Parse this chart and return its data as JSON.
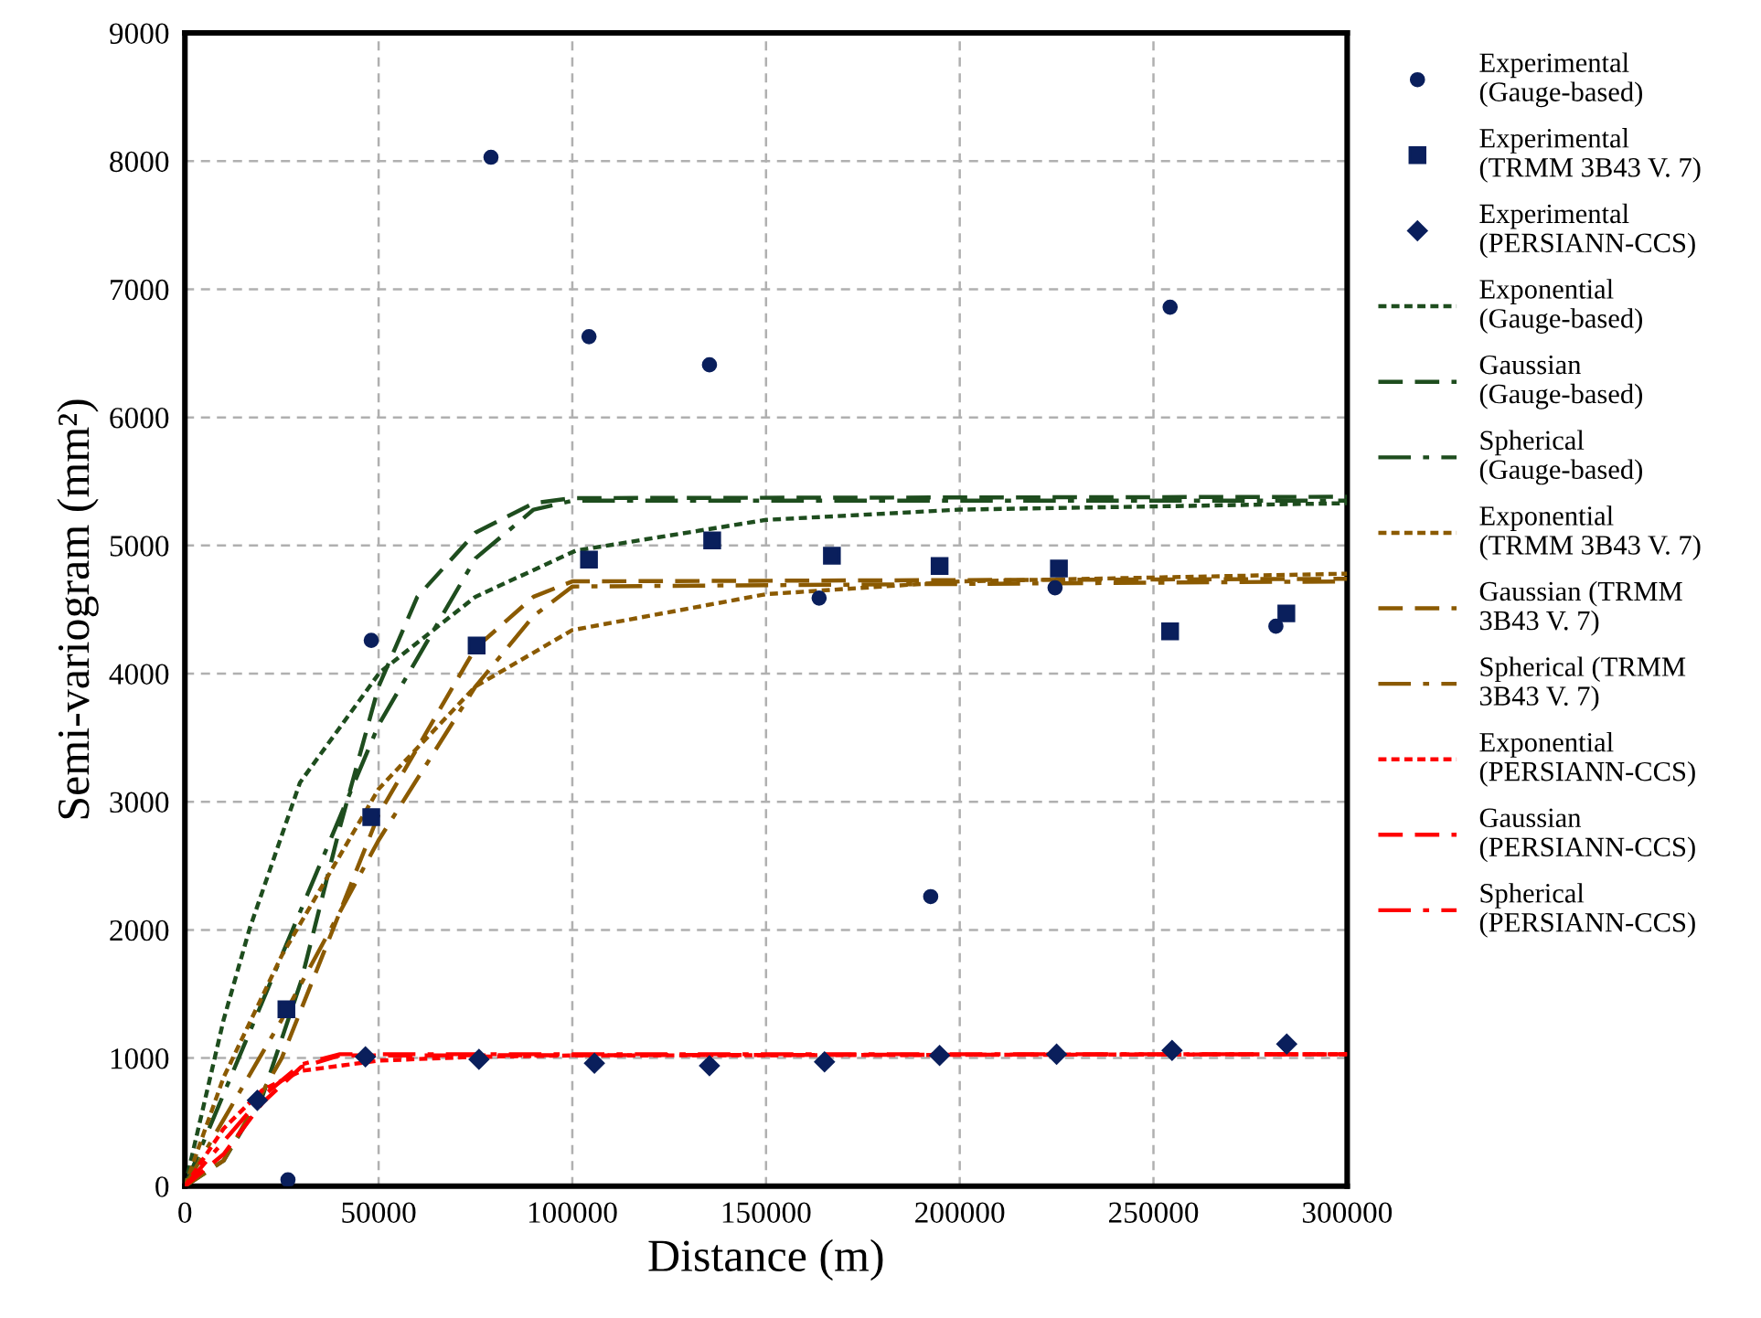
{
  "chart_data": {
    "type": "scatter",
    "xlabel": "Distance (m)",
    "ylabel": "Semi-variogram (mm²)",
    "xlim": [
      0,
      300000
    ],
    "ylim": [
      0,
      9000
    ],
    "xticks": [
      0,
      50000,
      100000,
      150000,
      200000,
      250000,
      300000
    ],
    "yticks": [
      0,
      1000,
      2000,
      3000,
      4000,
      5000,
      6000,
      7000,
      8000,
      9000
    ],
    "grid": true,
    "legend": "right",
    "series": [
      {
        "name": "Experimental (Gauge-based)",
        "marker": "circle",
        "color": "#0a1f5c",
        "x": [
          26600,
          48100,
          79000,
          104300,
          135400,
          163700,
          192500,
          224600,
          254300,
          281600
        ],
        "values": [
          50,
          4260,
          8030,
          6630,
          6410,
          4590,
          2260,
          4670,
          6860,
          4370
        ]
      },
      {
        "name": "Experimental (TRMM 3B43 V. 7)",
        "marker": "square",
        "color": "#0a1f5c",
        "x": [
          26200,
          48100,
          75300,
          104300,
          136100,
          167000,
          194800,
          225600,
          254300,
          284300
        ],
        "values": [
          1380,
          2880,
          4220,
          4890,
          5040,
          4920,
          4840,
          4820,
          4330,
          4470
        ]
      },
      {
        "name": "Experimental (PERSIANN-CCS)",
        "marker": "diamond",
        "color": "#0a1f5c",
        "x": [
          18700,
          46600,
          75900,
          105700,
          135400,
          165100,
          194800,
          225000,
          254800,
          284400
        ],
        "values": [
          670,
          1010,
          990,
          960,
          940,
          970,
          1020,
          1030,
          1060,
          1110
        ]
      },
      {
        "name": "Exponential (Gauge-based)",
        "type": "line",
        "line_style": "dotted",
        "color": "#1e4d1e",
        "x": [
          0,
          10000,
          16700,
          29700,
          50300,
          75000,
          100900,
          150000,
          200000,
          300000
        ],
        "values": [
          0,
          1300,
          2010,
          3150,
          4010,
          4600,
          4960,
          5200,
          5280,
          5330
        ]
      },
      {
        "name": "Gaussian (Gauge-based)",
        "type": "line",
        "line_style": "dashed",
        "color": "#1e4d1e",
        "x": [
          0,
          10000,
          20000,
          30000,
          40000,
          50000,
          60000,
          75000,
          90000,
          100000,
          300000
        ],
        "values": [
          0,
          200,
          700,
          1600,
          2800,
          3900,
          4600,
          5100,
          5330,
          5370,
          5380
        ]
      },
      {
        "name": "Spherical (Gauge-based)",
        "type": "line",
        "line_style": "dashdot",
        "color": "#1e4d1e",
        "x": [
          0,
          25000,
          50000,
          75000,
          90000,
          100000,
          300000
        ],
        "values": [
          0,
          1800,
          3600,
          4900,
          5280,
          5350,
          5350
        ]
      },
      {
        "name": "Exponential (TRMM 3B43 V. 7)",
        "type": "line",
        "line_style": "dotted",
        "color": "#8b5a00",
        "x": [
          0,
          10000,
          25000,
          50000,
          75000,
          100000,
          150000,
          200000,
          300000
        ],
        "values": [
          0,
          850,
          1800,
          3100,
          3900,
          4340,
          4620,
          4720,
          4780
        ]
      },
      {
        "name": "Gaussian (TRMM 3B43 V. 7)",
        "type": "line",
        "line_style": "dashed",
        "color": "#8b5a00",
        "x": [
          0,
          10000,
          25000,
          50000,
          75000,
          90000,
          100000,
          300000
        ],
        "values": [
          0,
          200,
          1000,
          2900,
          4200,
          4600,
          4720,
          4740
        ]
      },
      {
        "name": "Spherical (TRMM 3B43 V. 7)",
        "type": "line",
        "line_style": "dashdot",
        "color": "#8b5a00",
        "x": [
          0,
          25000,
          50000,
          75000,
          90000,
          100000,
          300000
        ],
        "values": [
          0,
          1300,
          2700,
          3900,
          4450,
          4680,
          4720
        ]
      },
      {
        "name": "Exponential (PERSIANN-CCS)",
        "type": "line",
        "line_style": "dotted",
        "color": "#ff0000",
        "x": [
          0,
          10000,
          20000,
          30000,
          50000,
          75000,
          100000,
          300000
        ],
        "values": [
          0,
          450,
          750,
          900,
          980,
          1010,
          1020,
          1030
        ]
      },
      {
        "name": "Gaussian (PERSIANN-CCS)",
        "type": "line",
        "line_style": "dashed",
        "color": "#ff0000",
        "x": [
          0,
          10000,
          20000,
          30000,
          40000,
          300000
        ],
        "values": [
          0,
          250,
          650,
          930,
          1020,
          1030
        ]
      },
      {
        "name": "Spherical (PERSIANN-CCS)",
        "type": "line",
        "line_style": "dashdot",
        "color": "#ff0000",
        "x": [
          0,
          10000,
          20000,
          30000,
          40000,
          300000
        ],
        "values": [
          0,
          350,
          700,
          950,
          1030,
          1030
        ]
      }
    ]
  }
}
